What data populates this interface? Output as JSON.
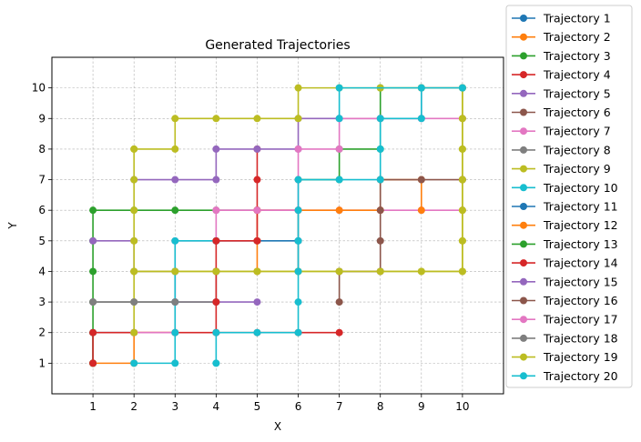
{
  "chart_data": {
    "type": "line",
    "title": "Generated Trajectories",
    "xlabel": "X",
    "ylabel": "Y",
    "xlim": [
      0,
      11
    ],
    "ylim": [
      0,
      11
    ],
    "xticks": [
      1,
      2,
      3,
      4,
      5,
      6,
      7,
      8,
      9,
      10
    ],
    "yticks": [
      1,
      2,
      3,
      4,
      5,
      6,
      7,
      8,
      9,
      10
    ],
    "grid": true,
    "legend": "outside-right",
    "series": [
      {
        "name": "Trajectory 1",
        "color": "#1f77b4",
        "points": [
          [
            1,
            1
          ],
          [
            1,
            2
          ],
          [
            2,
            2
          ]
        ]
      },
      {
        "name": "Trajectory 2",
        "color": "#ff7f0e",
        "points": [
          [
            1,
            1
          ],
          [
            2,
            1
          ],
          [
            2,
            2
          ],
          [
            3,
            2
          ]
        ]
      },
      {
        "name": "Trajectory 3",
        "color": "#2ca02c",
        "points": [
          [
            1,
            1
          ],
          [
            1,
            2
          ],
          [
            1,
            3
          ],
          [
            1,
            4
          ],
          [
            1,
            5
          ],
          [
            1,
            6
          ],
          [
            2,
            6
          ],
          [
            3,
            6
          ],
          [
            4,
            6
          ],
          [
            5,
            6
          ]
        ]
      },
      {
        "name": "Trajectory 4",
        "color": "#d62728",
        "points": [
          [
            1,
            1
          ],
          [
            1,
            2
          ],
          [
            2,
            2
          ],
          [
            3,
            2
          ],
          [
            4,
            2
          ],
          [
            5,
            2
          ],
          [
            6,
            2
          ],
          [
            7,
            2
          ]
        ]
      },
      {
        "name": "Trajectory 5",
        "color": "#9467bd",
        "points": [
          [
            1,
            5
          ],
          [
            2,
            5
          ],
          [
            2,
            4
          ],
          [
            3,
            4
          ],
          [
            3,
            3
          ],
          [
            4,
            3
          ],
          [
            5,
            3
          ]
        ]
      },
      {
        "name": "Trajectory 6",
        "color": "#8c564b",
        "points": [
          [
            5,
            6
          ],
          [
            6,
            6
          ],
          [
            6,
            5
          ],
          [
            6,
            4
          ]
        ]
      },
      {
        "name": "Trajectory 7",
        "color": "#e377c2",
        "points": [
          [
            2,
            2
          ],
          [
            3,
            2
          ],
          [
            3,
            3
          ],
          [
            3,
            4
          ],
          [
            3,
            5
          ],
          [
            4,
            5
          ],
          [
            4,
            6
          ],
          [
            5,
            6
          ],
          [
            6,
            6
          ],
          [
            7,
            6
          ],
          [
            8,
            6
          ],
          [
            9,
            6
          ],
          [
            10,
            6
          ]
        ]
      },
      {
        "name": "Trajectory 8",
        "color": "#7f7f7f",
        "points": [
          [
            1,
            3
          ],
          [
            2,
            3
          ],
          [
            3,
            3
          ],
          [
            4,
            3
          ],
          [
            4,
            4
          ]
        ]
      },
      {
        "name": "Trajectory 9",
        "color": "#bcbd22",
        "points": [
          [
            2,
            2
          ],
          [
            2,
            3
          ],
          [
            2,
            4
          ],
          [
            3,
            4
          ],
          [
            4,
            4
          ],
          [
            5,
            4
          ],
          [
            6,
            4
          ],
          [
            7,
            4
          ],
          [
            8,
            4
          ],
          [
            9,
            4
          ],
          [
            10,
            4
          ],
          [
            10,
            5
          ],
          [
            10,
            6
          ],
          [
            10,
            7
          ],
          [
            10,
            8
          ],
          [
            10,
            9
          ],
          [
            10,
            10
          ]
        ]
      },
      {
        "name": "Trajectory 10",
        "color": "#17becf",
        "points": [
          [
            2,
            1
          ],
          [
            3,
            1
          ],
          [
            3,
            2
          ],
          [
            3,
            3
          ],
          [
            3,
            4
          ],
          [
            3,
            5
          ],
          [
            4,
            5
          ]
        ]
      },
      {
        "name": "Trajectory 11",
        "color": "#1f77b4",
        "points": [
          [
            4,
            5
          ],
          [
            5,
            5
          ],
          [
            6,
            5
          ]
        ]
      },
      {
        "name": "Trajectory 12",
        "color": "#ff7f0e",
        "points": [
          [
            5,
            4
          ],
          [
            5,
            5
          ],
          [
            5,
            6
          ],
          [
            6,
            6
          ],
          [
            7,
            6
          ],
          [
            8,
            6
          ],
          [
            8,
            7
          ],
          [
            9,
            7
          ],
          [
            9,
            6
          ]
        ]
      },
      {
        "name": "Trajectory 13",
        "color": "#2ca02c",
        "points": [
          [
            6,
            7
          ],
          [
            7,
            7
          ],
          [
            7,
            8
          ],
          [
            8,
            8
          ],
          [
            8,
            9
          ],
          [
            8,
            10
          ],
          [
            9,
            10
          ],
          [
            10,
            10
          ]
        ]
      },
      {
        "name": "Trajectory 14",
        "color": "#d62728",
        "points": [
          [
            4,
            2
          ],
          [
            4,
            3
          ],
          [
            4,
            4
          ],
          [
            4,
            5
          ],
          [
            5,
            5
          ],
          [
            5,
            6
          ],
          [
            5,
            7
          ],
          [
            5,
            8
          ]
        ]
      },
      {
        "name": "Trajectory 15",
        "color": "#9467bd",
        "points": [
          [
            2,
            7
          ],
          [
            3,
            7
          ],
          [
            4,
            7
          ],
          [
            4,
            8
          ],
          [
            5,
            8
          ],
          [
            6,
            8
          ],
          [
            6,
            9
          ],
          [
            7,
            9
          ],
          [
            8,
            9
          ],
          [
            9,
            9
          ],
          [
            9,
            10
          ],
          [
            10,
            10
          ]
        ]
      },
      {
        "name": "Trajectory 16",
        "color": "#8c564b",
        "points": [
          [
            7,
            3
          ],
          [
            7,
            4
          ],
          [
            8,
            4
          ],
          [
            8,
            5
          ],
          [
            8,
            6
          ],
          [
            8,
            7
          ],
          [
            9,
            7
          ],
          [
            10,
            7
          ]
        ]
      },
      {
        "name": "Trajectory 17",
        "color": "#e377c2",
        "points": [
          [
            4,
            6
          ],
          [
            5,
            6
          ],
          [
            6,
            6
          ],
          [
            6,
            7
          ],
          [
            6,
            8
          ],
          [
            7,
            8
          ],
          [
            7,
            9
          ],
          [
            8,
            9
          ],
          [
            9,
            9
          ],
          [
            10,
            9
          ]
        ]
      },
      {
        "name": "Trajectory 18",
        "color": "#7f7f7f",
        "points": [
          [
            1,
            3
          ],
          [
            2,
            3
          ],
          [
            3,
            3
          ]
        ]
      },
      {
        "name": "Trajectory 19",
        "color": "#bcbd22",
        "points": [
          [
            2,
            8
          ],
          [
            3,
            8
          ],
          [
            3,
            9
          ],
          [
            4,
            9
          ],
          [
            5,
            9
          ],
          [
            6,
            9
          ],
          [
            6,
            10
          ],
          [
            7,
            10
          ],
          [
            8,
            10
          ],
          [
            9,
            10
          ],
          [
            10,
            10
          ],
          [
            10,
            9
          ],
          [
            10,
            8
          ],
          [
            10,
            7
          ],
          [
            10,
            6
          ],
          [
            10,
            5
          ],
          [
            10,
            4
          ],
          [
            9,
            4
          ],
          [
            8,
            4
          ],
          [
            7,
            4
          ],
          [
            6,
            4
          ],
          [
            5,
            4
          ],
          [
            4,
            4
          ],
          [
            3,
            4
          ],
          [
            2,
            4
          ],
          [
            2,
            5
          ],
          [
            2,
            6
          ],
          [
            2,
            7
          ],
          [
            2,
            8
          ]
        ]
      },
      {
        "name": "Trajectory 20",
        "color": "#17becf",
        "points": [
          [
            4,
            1
          ],
          [
            4,
            2
          ],
          [
            5,
            2
          ],
          [
            6,
            2
          ],
          [
            6,
            3
          ],
          [
            6,
            4
          ],
          [
            6,
            5
          ],
          [
            6,
            6
          ],
          [
            6,
            7
          ],
          [
            7,
            7
          ],
          [
            8,
            7
          ],
          [
            8,
            8
          ],
          [
            8,
            9
          ],
          [
            9,
            9
          ],
          [
            9,
            10
          ],
          [
            10,
            10
          ],
          [
            7,
            10
          ],
          [
            7,
            9
          ]
        ]
      }
    ]
  }
}
